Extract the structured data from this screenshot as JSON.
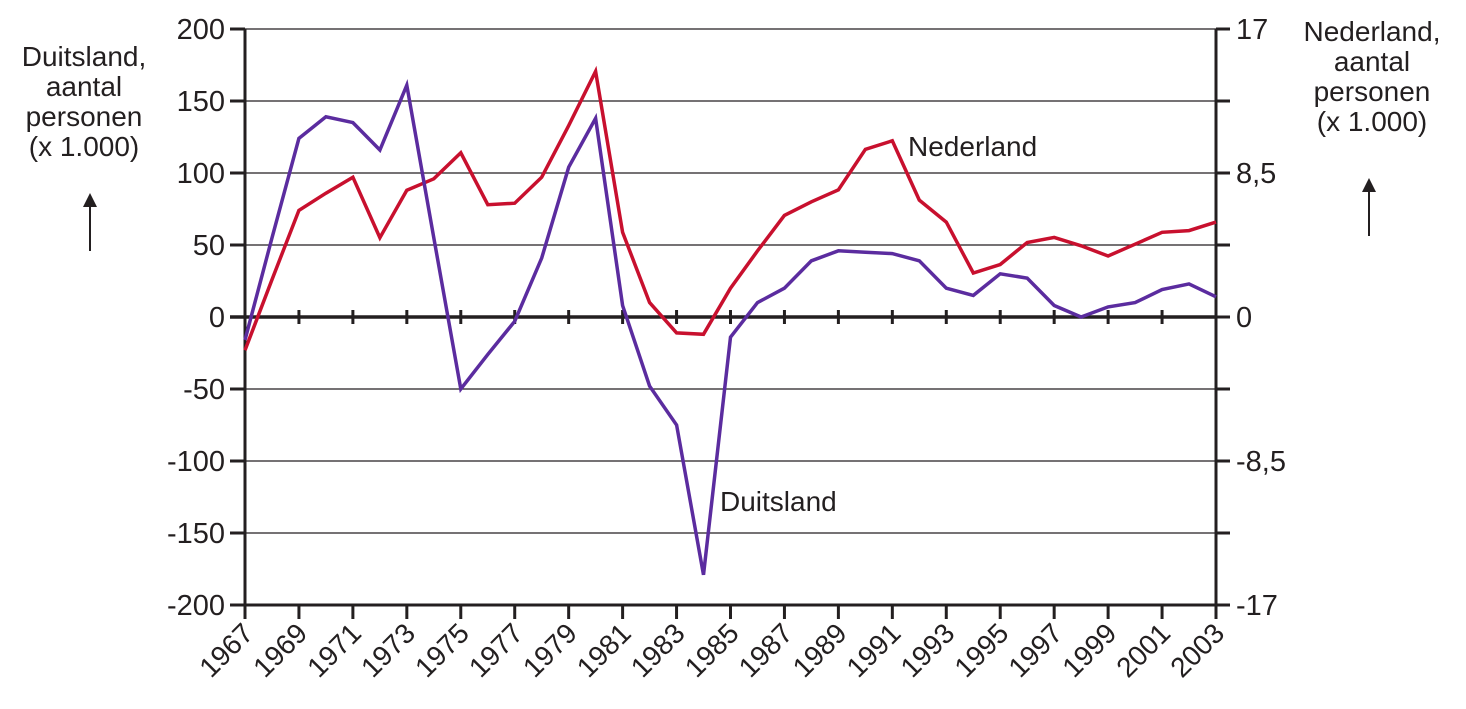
{
  "left_axis_title": [
    "Duitsland,",
    "aantal",
    "personen",
    "(x 1.000)"
  ],
  "right_axis_title": [
    "Nederland,",
    "aantal",
    "personen",
    "(x 1.000)"
  ],
  "left_ticks": [
    "200",
    "150",
    "100",
    "50",
    "0",
    "-50",
    "-100",
    "-150",
    "-200"
  ],
  "right_ticks": [
    "17",
    "8,5",
    "0",
    "-8,5",
    "-17"
  ],
  "x_tick_labels": [
    "1967",
    "1969",
    "1971",
    "1973",
    "1975",
    "1977",
    "1979",
    "1981",
    "1983",
    "1985",
    "1987",
    "1989",
    "1991",
    "1993",
    "1995",
    "1997",
    "1999",
    "2001",
    "2003"
  ],
  "series_labels": {
    "nederland": "Nederland",
    "duitsland": "Duitsland"
  },
  "colors": {
    "nederland": "#c8102e",
    "duitsland": "#5b2c9f",
    "axis": "#231f20"
  },
  "chart_data": {
    "type": "line",
    "title": "",
    "xlabel": "",
    "ylabel": "Duitsland, aantal personen (x 1.000)",
    "ylabel_right": "Nederland, aantal personen (x 1.000)",
    "ylim": [
      -200,
      200
    ],
    "ylim_right": [
      -17,
      17
    ],
    "grid": true,
    "legend": "inline labels",
    "x": [
      1967,
      1968,
      1969,
      1970,
      1971,
      1972,
      1973,
      1974,
      1975,
      1976,
      1977,
      1978,
      1979,
      1980,
      1981,
      1982,
      1983,
      1984,
      1985,
      1986,
      1987,
      1988,
      1989,
      1990,
      1991,
      1992,
      1993,
      1994,
      1995,
      1996,
      1997,
      1998,
      1999,
      2000,
      2001,
      2002,
      2003
    ],
    "series": [
      {
        "name": "Duitsland",
        "axis": "left",
        "values": [
          -16,
          55,
          124,
          139,
          135,
          116,
          161,
          55,
          -50,
          -26,
          -3,
          41,
          104,
          138,
          8,
          -48,
          -75,
          -179,
          -14,
          10,
          20,
          39,
          46,
          45,
          44,
          39,
          20,
          15,
          30,
          27,
          8,
          0,
          7,
          10,
          19,
          23,
          14
        ]
      },
      {
        "name": "Nederland",
        "axis": "right",
        "values": [
          -1.96,
          2.21,
          6.29,
          7.31,
          8.25,
          4.68,
          7.48,
          8.16,
          9.69,
          6.63,
          6.72,
          8.25,
          11.3,
          14.5,
          5.0,
          0.85,
          -0.94,
          -1.02,
          1.7,
          3.9,
          6.0,
          6.8,
          7.5,
          9.9,
          10.4,
          6.9,
          5.6,
          2.6,
          3.1,
          4.4,
          4.7,
          4.2,
          3.6,
          4.3,
          5.0,
          5.1,
          5.6
        ]
      }
    ]
  }
}
